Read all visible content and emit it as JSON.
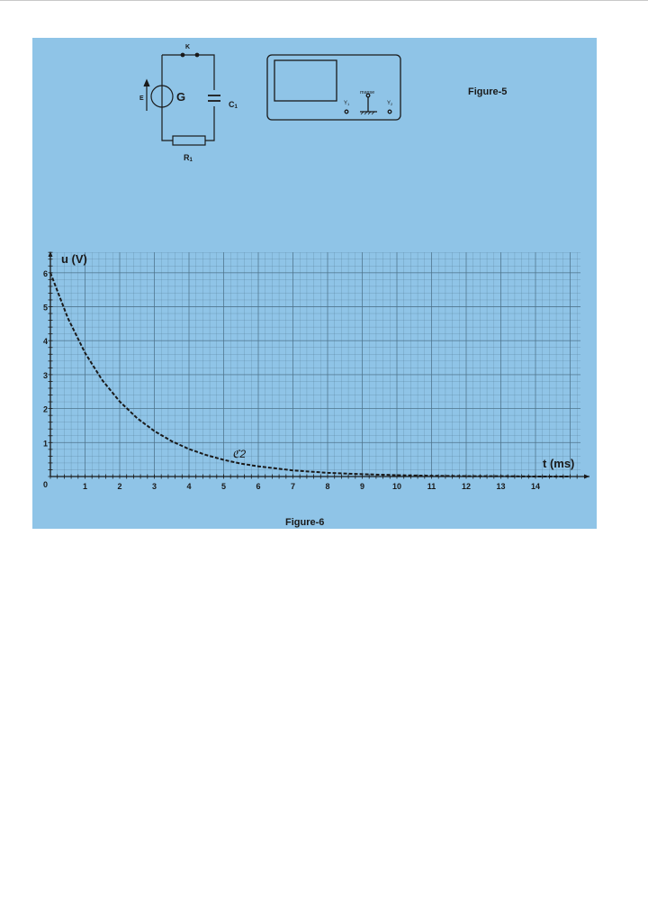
{
  "figure5": {
    "caption": "Figure-5",
    "circuit": {
      "switch_label": "K",
      "generator_label": "G",
      "emf_label": "E",
      "capacitor_label": "C",
      "capacitor_sub": "1",
      "resistor_label": "R",
      "resistor_sub": "1"
    },
    "oscilloscope": {
      "input1_label": "Y",
      "input1_sub": "1",
      "ground_label": "masse",
      "input2_label": "Y",
      "input2_sub": "2"
    }
  },
  "figure6": {
    "caption": "Figure-6",
    "curve_label": "ℭ2"
  },
  "chart_data": {
    "type": "line",
    "title": "",
    "xlabel": "t (ms)",
    "ylabel": "u (V)",
    "xlim": [
      0,
      15.3
    ],
    "ylim": [
      0,
      6.6
    ],
    "x_ticks": [
      0,
      1,
      2,
      3,
      4,
      5,
      6,
      7,
      8,
      9,
      10,
      11,
      12,
      13,
      14
    ],
    "y_ticks": [
      0,
      1,
      2,
      3,
      4,
      5,
      6
    ],
    "grid": true,
    "minor_grid_subdivisions": 5,
    "line_style": "dashed",
    "colors": {
      "background": "#8fc4e7",
      "grid": "#4a6f86",
      "curve": "#1a1a1a"
    },
    "series": [
      {
        "x": [
          0,
          0.5,
          1,
          1.5,
          2,
          2.5,
          3,
          3.5,
          4,
          4.5,
          5,
          5.5,
          6,
          7,
          8,
          9,
          10,
          11,
          12,
          13,
          14,
          15
        ],
        "y": [
          6.0,
          4.67,
          3.64,
          2.83,
          2.21,
          1.72,
          1.34,
          1.04,
          0.81,
          0.63,
          0.49,
          0.38,
          0.3,
          0.18,
          0.11,
          0.07,
          0.04,
          0.02,
          0.01,
          0.01,
          0.0,
          0.0
        ]
      }
    ]
  }
}
